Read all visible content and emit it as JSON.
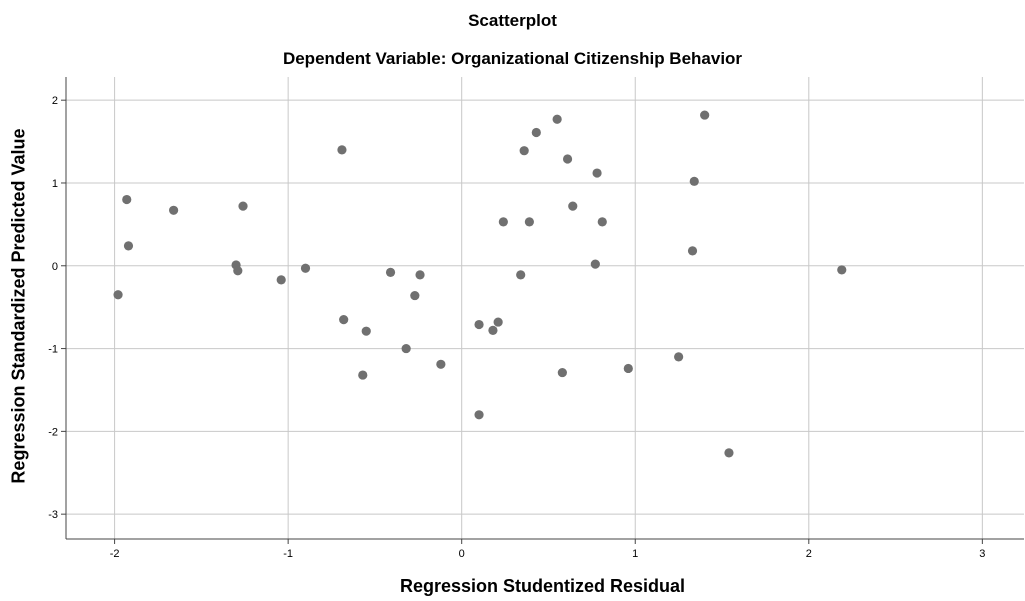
{
  "chart_data": {
    "type": "scatter",
    "title": "Scatterplot",
    "subtitle": "Dependent Variable: Organizational Citizenship Behavior",
    "xlabel": "Regression Studentized Residual",
    "ylabel": "Regression Standardized Predicted Value",
    "xlim": [
      -2.28,
      3.24
    ],
    "ylim": [
      -3.3,
      2.28
    ],
    "xticks": [
      -2,
      -1,
      0,
      1,
      2,
      3
    ],
    "xtick_labels": [
      "-2",
      "-1",
      "0",
      "1",
      "2",
      "3"
    ],
    "yticks": [
      -3,
      -2,
      -1,
      0,
      1,
      2
    ],
    "ytick_labels": [
      "-3",
      "-2",
      "-1",
      "0",
      "1",
      "2"
    ],
    "grid": true,
    "point_color": "#707070",
    "series": [
      {
        "points": [
          [
            -1.98,
            -0.35
          ],
          [
            -1.93,
            0.8
          ],
          [
            -1.92,
            0.24
          ],
          [
            -1.66,
            0.67
          ],
          [
            -1.3,
            0.01
          ],
          [
            -1.29,
            -0.06
          ],
          [
            -1.26,
            0.72
          ],
          [
            -1.04,
            -0.17
          ],
          [
            -0.9,
            -0.03
          ],
          [
            -0.69,
            1.4
          ],
          [
            -0.68,
            -0.65
          ],
          [
            -0.57,
            -1.32
          ],
          [
            -0.55,
            -0.79
          ],
          [
            -0.41,
            -0.08
          ],
          [
            -0.32,
            -1.0
          ],
          [
            -0.27,
            -0.36
          ],
          [
            -0.24,
            -0.11
          ],
          [
            -0.12,
            -1.19
          ],
          [
            0.1,
            -0.71
          ],
          [
            0.1,
            -1.8
          ],
          [
            0.18,
            -0.78
          ],
          [
            0.21,
            -0.68
          ],
          [
            0.24,
            0.53
          ],
          [
            0.34,
            -0.11
          ],
          [
            0.36,
            1.39
          ],
          [
            0.39,
            0.53
          ],
          [
            0.43,
            1.61
          ],
          [
            0.55,
            1.77
          ],
          [
            0.58,
            -1.29
          ],
          [
            0.61,
            1.29
          ],
          [
            0.64,
            0.72
          ],
          [
            0.77,
            0.02
          ],
          [
            0.78,
            1.12
          ],
          [
            0.81,
            0.53
          ],
          [
            0.96,
            -1.24
          ],
          [
            1.25,
            -1.1
          ],
          [
            1.33,
            0.18
          ],
          [
            1.34,
            1.02
          ],
          [
            1.4,
            1.82
          ],
          [
            1.54,
            -2.26
          ],
          [
            2.19,
            -0.05
          ]
        ]
      }
    ]
  }
}
